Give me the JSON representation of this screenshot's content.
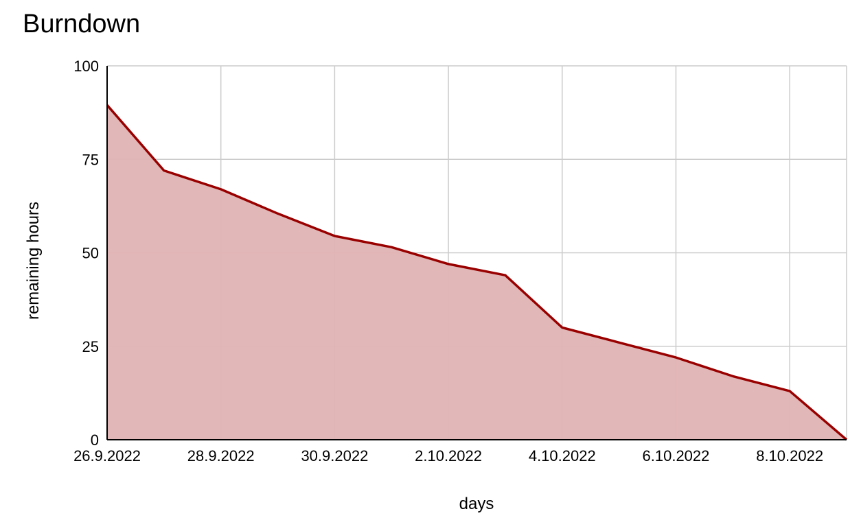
{
  "chart_data": {
    "type": "area",
    "title": "Burndown",
    "xlabel": "days",
    "ylabel": "remaining hours",
    "x": [
      "26.9.2022",
      "27.9.2022",
      "28.9.2022",
      "29.9.2022",
      "30.9.2022",
      "1.10.2022",
      "2.10.2022",
      "3.10.2022",
      "4.10.2022",
      "5.10.2022",
      "6.10.2022",
      "7.10.2022",
      "8.10.2022",
      "9.10.2022"
    ],
    "x_tick_labels": [
      "26.9.2022",
      "28.9.2022",
      "30.9.2022",
      "2.10.2022",
      "4.10.2022",
      "6.10.2022",
      "8.10.2022"
    ],
    "y_ticks": [
      0,
      25,
      50,
      75,
      100
    ],
    "ylim": [
      0,
      100
    ],
    "grid": true,
    "series": [
      {
        "values": [
          89.5,
          72,
          67,
          60.5,
          54.5,
          51.5,
          47,
          44,
          30,
          26,
          22,
          17,
          13,
          0
        ]
      }
    ],
    "colors": {
      "line": "#990000",
      "fill": "#e0b3b3",
      "grid": "#cccccc",
      "axis": "#000000"
    }
  }
}
